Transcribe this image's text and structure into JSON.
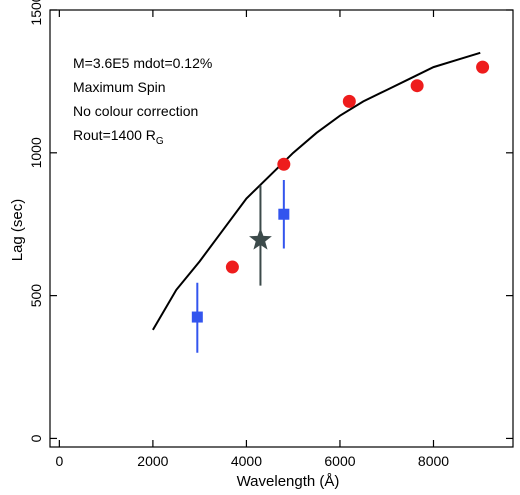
{
  "chart_data": {
    "type": "scatter",
    "xlabel": "Wavelength (Å)",
    "ylabel": "Lag (sec)",
    "xlim": [
      -200,
      9700
    ],
    "ylim": [
      -30,
      1500
    ],
    "xticks": [
      0,
      2000,
      4000,
      6000,
      8000
    ],
    "xtick_labels": [
      "0",
      "2000",
      "4000",
      "6000",
      "8000"
    ],
    "yticks": [
      0,
      500,
      1000,
      1500
    ],
    "ytick_labels": [
      "0",
      "500",
      "1000",
      "1500"
    ],
    "grid": false,
    "annotations": [
      {
        "text": "M=3.6E5 mdot=0.12%"
      },
      {
        "text": "Maximum Spin"
      },
      {
        "text": "No colour correction"
      },
      {
        "text": "Rout=1400 R",
        "subscript": "G"
      }
    ],
    "series": [
      {
        "marker": "line",
        "color": "#000000",
        "x": [
          2000,
          2500,
          3000,
          3500,
          4000,
          4500,
          5000,
          5500,
          6000,
          6500,
          7000,
          7500,
          8000,
          8500,
          9000
        ],
        "y": [
          380,
          520,
          620,
          730,
          840,
          920,
          1000,
          1070,
          1130,
          1180,
          1220,
          1260,
          1300,
          1325,
          1350
        ]
      },
      {
        "marker": "circle",
        "color": "#ee1c1c",
        "x": [
          3700,
          4800,
          6200,
          7650,
          9050
        ],
        "y": [
          600,
          960,
          1180,
          1235,
          1300
        ]
      },
      {
        "marker": "square",
        "color": "#3355ee",
        "x": [
          2950,
          4800
        ],
        "y": [
          425,
          785
        ],
        "yerr_low": [
          300,
          665
        ],
        "yerr_high": [
          545,
          905
        ]
      },
      {
        "marker": "star",
        "color": "#3c4a4a",
        "x": [
          4300
        ],
        "y": [
          695
        ],
        "yerr_low": [
          535
        ],
        "yerr_high": [
          885
        ]
      }
    ]
  }
}
